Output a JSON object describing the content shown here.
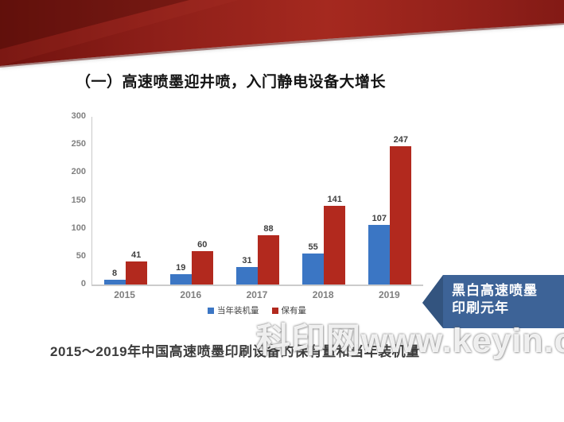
{
  "slide": {
    "title": "（一）高速喷墨迎井喷，入门静电设备大增长",
    "caption": "2015～2019年中国高速喷墨印刷设备的保有量和当年装机量",
    "watermark": "科印网www.keyin.cn",
    "callout": {
      "line1": "黑白高速喷墨",
      "line2": "印刷元年",
      "color": "#3d6397"
    }
  },
  "colors": {
    "bar_blue": "#3b76c4",
    "bar_red": "#b2291e",
    "banner_blue": "#3d6397",
    "ribbon_dark": "#70120e",
    "ribbon_bright": "#a5291f",
    "axis_gray": "#c9c9c9",
    "tick_label_gray": "#808080"
  },
  "chart_data": {
    "type": "bar",
    "title": "",
    "categories": [
      "2015",
      "2016",
      "2017",
      "2018",
      "2019"
    ],
    "series": [
      {
        "name": "当年装机量",
        "color": "#3b76c4",
        "values": [
          8,
          19,
          31,
          55,
          107
        ]
      },
      {
        "name": "保有量",
        "color": "#b2291e",
        "values": [
          41,
          60,
          88,
          141,
          247
        ]
      }
    ],
    "xlabel": "",
    "ylabel": "",
    "ylim": [
      0,
      300
    ],
    "yticks": [
      0,
      50,
      100,
      150,
      200,
      250,
      300
    ],
    "grid": false,
    "legend_position": "bottom",
    "value_labels": true
  }
}
